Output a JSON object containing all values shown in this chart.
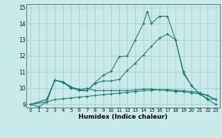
{
  "title": "",
  "xlabel": "Humidex (Indice chaleur)",
  "bg_color": "#c8eaea",
  "grid_color": "#aecccc",
  "line_color": "#1a7a6e",
  "xlim": [
    -0.5,
    23.5
  ],
  "ylim": [
    8.8,
    15.2
  ],
  "xticks": [
    0,
    1,
    2,
    3,
    4,
    5,
    6,
    7,
    8,
    9,
    10,
    11,
    12,
    13,
    14,
    15,
    16,
    17,
    18,
    19,
    20,
    21,
    22,
    23
  ],
  "yticks": [
    9,
    10,
    11,
    12,
    13,
    14,
    15
  ],
  "lines": [
    {
      "x": [
        0,
        2,
        3,
        4,
        5,
        6,
        7,
        8,
        9,
        10,
        11,
        12,
        13,
        14,
        14.5,
        15,
        16,
        17,
        18,
        19,
        20,
        21,
        22,
        23
      ],
      "y": [
        9.0,
        9.3,
        10.5,
        10.4,
        10.1,
        9.85,
        9.85,
        10.35,
        10.8,
        11.05,
        11.95,
        12.0,
        13.0,
        14.0,
        14.75,
        14.0,
        14.45,
        14.45,
        13.0,
        10.9,
        10.15,
        9.65,
        9.3,
        9.0
      ]
    },
    {
      "x": [
        0,
        2,
        3,
        4,
        5,
        6,
        7,
        8,
        9,
        10,
        11,
        12,
        13,
        14,
        15,
        16,
        17,
        18,
        19,
        20,
        21,
        22,
        23
      ],
      "y": [
        9.0,
        9.15,
        10.5,
        10.35,
        10.05,
        9.95,
        9.85,
        10.3,
        10.45,
        10.45,
        10.55,
        11.1,
        11.55,
        12.05,
        12.6,
        13.1,
        13.35,
        13.0,
        11.0,
        10.15,
        9.65,
        9.35,
        9.3
      ]
    },
    {
      "x": [
        0,
        2,
        3,
        4,
        5,
        6,
        7,
        8,
        9,
        10,
        11,
        12,
        13,
        14,
        15,
        16,
        17,
        18,
        19,
        20,
        21,
        22,
        23
      ],
      "y": [
        9.0,
        9.3,
        10.5,
        10.4,
        10.0,
        9.9,
        10.0,
        9.85,
        9.85,
        9.85,
        9.85,
        9.85,
        9.9,
        9.95,
        9.95,
        9.9,
        9.85,
        9.8,
        9.8,
        9.7,
        9.65,
        9.55,
        9.3
      ]
    },
    {
      "x": [
        0,
        1,
        2,
        3,
        4,
        5,
        6,
        7,
        8,
        9,
        10,
        11,
        12,
        13,
        14,
        15,
        16,
        17,
        18,
        19,
        20,
        21,
        22,
        23
      ],
      "y": [
        9.0,
        8.85,
        9.15,
        9.3,
        9.35,
        9.4,
        9.45,
        9.5,
        9.55,
        9.6,
        9.65,
        9.7,
        9.75,
        9.8,
        9.85,
        9.88,
        9.9,
        9.92,
        9.88,
        9.85,
        9.8,
        9.72,
        9.55,
        9.3
      ]
    }
  ]
}
